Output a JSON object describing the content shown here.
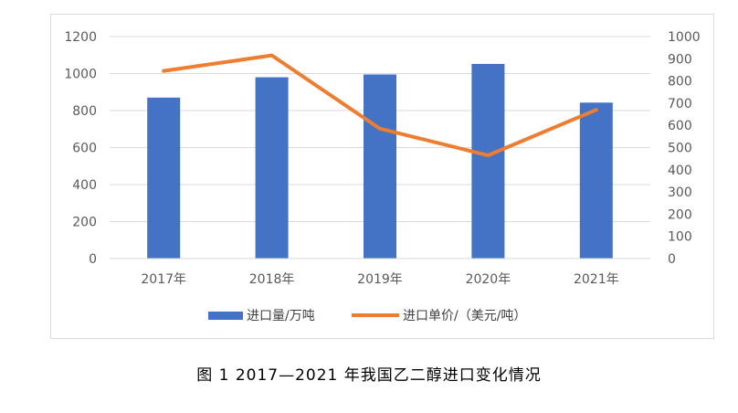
{
  "caption": "图 1  2017—2021 年我国乙二醇进口变化情况",
  "chart_data": {
    "type": "bar",
    "categories": [
      "2017年",
      "2018年",
      "2019年",
      "2020年",
      "2021年"
    ],
    "series": [
      {
        "name": "进口量/万吨",
        "type": "bar",
        "axis": "left",
        "color": "#4472C4",
        "values": [
          870,
          980,
          995,
          1052,
          843
        ]
      },
      {
        "name": "进口单价/（美元/吨）",
        "type": "line",
        "axis": "right",
        "color": "#ED7D31",
        "values": [
          845,
          915,
          585,
          465,
          670
        ]
      }
    ],
    "y_left": {
      "min": 0,
      "max": 1200,
      "ticks": [
        0,
        200,
        400,
        600,
        800,
        1000,
        1200
      ]
    },
    "y_right": {
      "min": 0,
      "max": 1000,
      "ticks": [
        0,
        100,
        200,
        300,
        400,
        500,
        600,
        700,
        800,
        900,
        1000
      ]
    },
    "grid": true,
    "legend_position": "bottom"
  }
}
